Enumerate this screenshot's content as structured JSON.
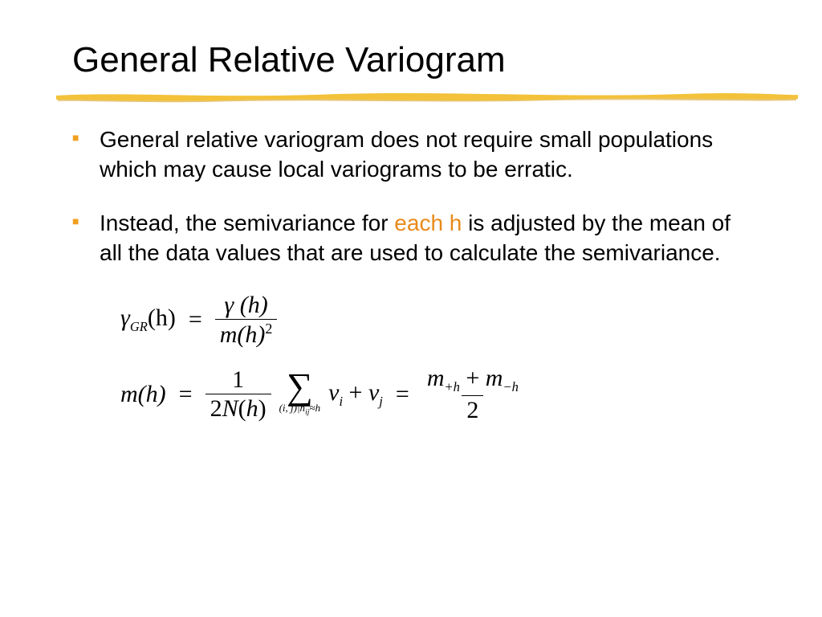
{
  "title": "General Relative Variogram",
  "bullet_color": "#f0a020",
  "highlight_color": "#e88a1a",
  "underline_color_main": "#f3c23a",
  "underline_color_shadow": "#d8a020",
  "bullets": [
    {
      "prefix": "General relative variogram does not require small populations which may cause local variograms to be erratic.",
      "highlight": "",
      "suffix": ""
    },
    {
      "prefix": "Instead, the semivariance for ",
      "highlight": "each h",
      "suffix": " is adjusted by the mean of all the data values that are used to calculate the semivariance."
    }
  ],
  "eq1": {
    "lhs_gamma": "γ",
    "lhs_sub": "GR",
    "lhs_arg": "(h)",
    "num": "γ (h)",
    "den_base": "m(h)",
    "den_exp": "2"
  },
  "eq2": {
    "lhs": "m(h)",
    "frac1_num": "1",
    "frac1_den": "2N(h)",
    "sum_under": "(i, j)|h",
    "sum_under_sub": "ij",
    "sum_under_tail": "≈h",
    "sum_body_v1": "v",
    "sum_body_i": "i",
    "sum_body_plus": " + ",
    "sum_body_v2": "v",
    "sum_body_j": "j",
    "frac2_num_m1": "m",
    "frac2_num_s1": "+h",
    "frac2_num_plus": " + ",
    "frac2_num_m2": "m",
    "frac2_num_s2": "−h",
    "frac2_den": "2"
  }
}
